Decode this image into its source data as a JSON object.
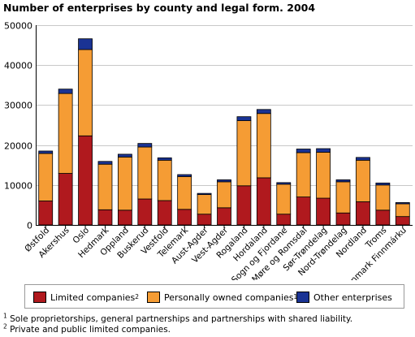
{
  "title": "Number of enterprises by county and legal form. 2004",
  "colors": {
    "limited": "#b0191e",
    "personal": "#f59c34",
    "other": "#1a3394",
    "grid": "#c8c8c8",
    "legend_border": "#9a9a9a"
  },
  "legend": [
    {
      "label": "Limited companies",
      "sup": "2"
    },
    {
      "label": "Personally owned companies",
      "sup": "1"
    },
    {
      "label": "Other enterprises",
      "sup": ""
    }
  ],
  "footnotes": [
    {
      "sup": "1",
      "text": " Sole proprietorships, general partnerships and partnerships with shared liability."
    },
    {
      "sup": "2",
      "text": " Private and public limited companies."
    }
  ],
  "chart_data": {
    "type": "bar",
    "stacked": true,
    "title": "Number of enterprises by county and legal form. 2004",
    "ylim": [
      0,
      50000
    ],
    "yticks": [
      0,
      10000,
      20000,
      30000,
      40000,
      50000
    ],
    "grid": true,
    "legend_position": "bottom",
    "categories": [
      "Østfold",
      "Akershus",
      "Oslo",
      "Hedmark",
      "Oppland",
      "Buskerud",
      "Vestfold",
      "Telemark",
      "Aust-Agder",
      "Vest-Agder",
      "Rogaland",
      "Hordaland",
      "Sogn og Fjordane",
      "Møre og Romsdal",
      "Sør-Trøndelag",
      "Nord-Trøndelag",
      "Nordland",
      "Troms",
      "Finnmark Finnmárku"
    ],
    "series": [
      {
        "name": "Limited companies",
        "values": [
          6000,
          12900,
          22300,
          3800,
          3700,
          6500,
          6100,
          3900,
          2700,
          4300,
          9800,
          11800,
          2700,
          7000,
          6700,
          3000,
          5800,
          3700,
          2100
        ]
      },
      {
        "name": "Personally owned companies",
        "values": [
          11900,
          20000,
          21600,
          11400,
          13300,
          13000,
          10100,
          8200,
          4900,
          6500,
          16300,
          16100,
          7500,
          11100,
          11500,
          7800,
          10400,
          6300,
          3200
        ]
      },
      {
        "name": "Other enterprises",
        "values": [
          600,
          1100,
          2700,
          700,
          700,
          900,
          600,
          500,
          300,
          500,
          1000,
          1000,
          400,
          900,
          900,
          500,
          700,
          500,
          300
        ]
      }
    ]
  }
}
